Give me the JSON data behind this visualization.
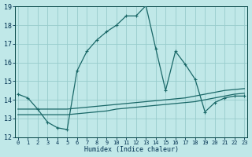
{
  "xlabel": "Humidex (Indice chaleur)",
  "bg_color": "#c0e8e8",
  "grid_color": "#98cccc",
  "line_color": "#1a6868",
  "xlim_min": -0.3,
  "xlim_max": 23.3,
  "ylim_min": 12,
  "ylim_max": 19,
  "yticks": [
    12,
    13,
    14,
    15,
    16,
    17,
    18,
    19
  ],
  "xticks": [
    0,
    1,
    2,
    3,
    4,
    5,
    6,
    7,
    8,
    9,
    10,
    11,
    12,
    13,
    14,
    15,
    16,
    17,
    18,
    19,
    20,
    21,
    22,
    23
  ],
  "series1_x": [
    0,
    1,
    2,
    3,
    4,
    5,
    6,
    7,
    8,
    9,
    10,
    11,
    12,
    13,
    14,
    15,
    16,
    17,
    18,
    19,
    20,
    21,
    22,
    23
  ],
  "series1_y": [
    14.3,
    14.1,
    13.5,
    12.8,
    12.5,
    12.4,
    15.55,
    16.6,
    17.2,
    17.65,
    18.0,
    18.5,
    18.5,
    19.05,
    16.75,
    14.5,
    16.6,
    15.9,
    15.1,
    13.35,
    13.85,
    14.1,
    14.2,
    14.2
  ],
  "series2_x": [
    0,
    1,
    2,
    3,
    4,
    5,
    6,
    7,
    8,
    9,
    10,
    11,
    12,
    13,
    14,
    15,
    16,
    17,
    18,
    19,
    20,
    21,
    22,
    23
  ],
  "series2_y": [
    13.5,
    13.5,
    13.5,
    13.5,
    13.5,
    13.5,
    13.55,
    13.6,
    13.65,
    13.7,
    13.75,
    13.8,
    13.85,
    13.9,
    13.95,
    14.0,
    14.05,
    14.1,
    14.2,
    14.3,
    14.4,
    14.5,
    14.55,
    14.6
  ],
  "series3_x": [
    0,
    1,
    2,
    3,
    4,
    5,
    6,
    7,
    8,
    9,
    10,
    11,
    12,
    13,
    14,
    15,
    16,
    17,
    18,
    19,
    20,
    21,
    22,
    23
  ],
  "series3_y": [
    13.2,
    13.2,
    13.2,
    13.2,
    13.2,
    13.2,
    13.25,
    13.3,
    13.35,
    13.4,
    13.5,
    13.55,
    13.6,
    13.65,
    13.7,
    13.75,
    13.8,
    13.85,
    13.9,
    14.0,
    14.1,
    14.2,
    14.3,
    14.35
  ]
}
